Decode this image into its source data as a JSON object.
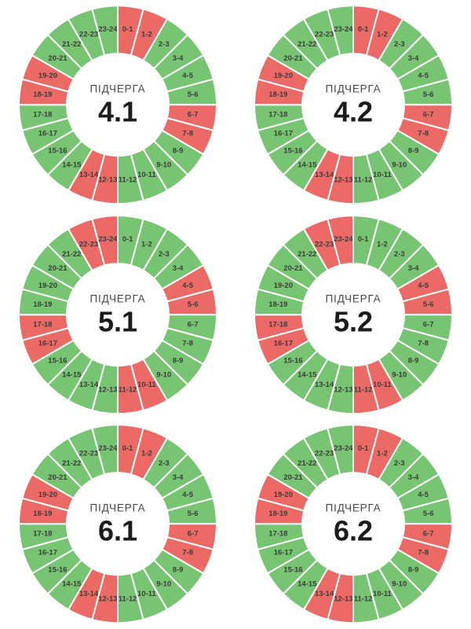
{
  "page": {
    "background": "#ffffff"
  },
  "palette": {
    "green": "#77c472",
    "red": "#ec6a66",
    "separator": "#ffffff",
    "hour_label_color": "#3c3c3c",
    "center_title_color": "#474747",
    "center_value_color": "#1c1c1c"
  },
  "chart_data": [
    {
      "type": "pie",
      "subtype": "donut",
      "title": "ПІДЧЕРГА",
      "center_value": "4.1",
      "slice_angle_deg": 15,
      "categories": [
        "0-1",
        "1-2",
        "2-3",
        "3-4",
        "4-5",
        "5-6",
        "6-7",
        "7-8",
        "8-9",
        "9-10",
        "10-11",
        "11-12",
        "12-13",
        "13-14",
        "14-15",
        "15-16",
        "16-17",
        "17-18",
        "18-19",
        "19-20",
        "20-21",
        "21-22",
        "22-23",
        "23-24"
      ],
      "slice_states": [
        "red",
        "red",
        "green",
        "green",
        "green",
        "green",
        "red",
        "red",
        "green",
        "green",
        "green",
        "green",
        "red",
        "red",
        "green",
        "green",
        "green",
        "green",
        "red",
        "red",
        "green",
        "green",
        "green",
        "green"
      ]
    },
    {
      "type": "pie",
      "subtype": "donut",
      "title": "ПІДЧЕРГА",
      "center_value": "4.2",
      "slice_angle_deg": 15,
      "categories": [
        "0-1",
        "1-2",
        "2-3",
        "3-4",
        "4-5",
        "5-6",
        "6-7",
        "7-8",
        "8-9",
        "9-10",
        "10-11",
        "11-12",
        "12-13",
        "13-14",
        "14-15",
        "15-16",
        "16-17",
        "17-18",
        "18-19",
        "19-20",
        "20-21",
        "21-22",
        "22-23",
        "23-24"
      ],
      "slice_states": [
        "red",
        "red",
        "green",
        "green",
        "green",
        "green",
        "red",
        "red",
        "green",
        "green",
        "green",
        "green",
        "red",
        "red",
        "green",
        "green",
        "green",
        "green",
        "red",
        "red",
        "green",
        "green",
        "green",
        "green"
      ]
    },
    {
      "type": "pie",
      "subtype": "donut",
      "title": "ПІДЧЕРГА",
      "center_value": "5.1",
      "slice_angle_deg": 15,
      "categories": [
        "0-1",
        "1-2",
        "2-3",
        "3-4",
        "4-5",
        "5-6",
        "6-7",
        "7-8",
        "8-9",
        "9-10",
        "10-11",
        "11-12",
        "12-13",
        "13-14",
        "14-15",
        "15-16",
        "16-17",
        "17-18",
        "18-19",
        "19-20",
        "20-21",
        "21-22",
        "22-23",
        "23-24"
      ],
      "slice_states": [
        "green",
        "green",
        "green",
        "green",
        "red",
        "red",
        "green",
        "green",
        "green",
        "green",
        "red",
        "red",
        "green",
        "green",
        "green",
        "green",
        "red",
        "red",
        "green",
        "green",
        "green",
        "green",
        "red",
        "red"
      ]
    },
    {
      "type": "pie",
      "subtype": "donut",
      "title": "ПІДЧЕРГА",
      "center_value": "5.2",
      "slice_angle_deg": 15,
      "categories": [
        "0-1",
        "1-2",
        "2-3",
        "3-4",
        "4-5",
        "5-6",
        "6-7",
        "7-8",
        "8-9",
        "9-10",
        "10-11",
        "11-12",
        "12-13",
        "13-14",
        "14-15",
        "15-16",
        "16-17",
        "17-18",
        "18-19",
        "19-20",
        "20-21",
        "21-22",
        "22-23",
        "23-24"
      ],
      "slice_states": [
        "green",
        "green",
        "green",
        "green",
        "red",
        "red",
        "green",
        "green",
        "green",
        "green",
        "red",
        "red",
        "green",
        "green",
        "green",
        "green",
        "red",
        "red",
        "green",
        "green",
        "green",
        "green",
        "red",
        "red"
      ]
    },
    {
      "type": "pie",
      "subtype": "donut",
      "title": "ПІДЧЕРГА",
      "center_value": "6.1",
      "slice_angle_deg": 15,
      "categories": [
        "0-1",
        "1-2",
        "2-3",
        "3-4",
        "4-5",
        "5-6",
        "6-7",
        "7-8",
        "8-9",
        "9-10",
        "10-11",
        "11-12",
        "12-13",
        "13-14",
        "14-15",
        "15-16",
        "16-17",
        "17-18",
        "18-19",
        "19-20",
        "20-21",
        "21-22",
        "22-23",
        "23-24"
      ],
      "slice_states": [
        "red",
        "red",
        "green",
        "green",
        "green",
        "green",
        "red",
        "red",
        "green",
        "green",
        "green",
        "green",
        "red",
        "red",
        "green",
        "green",
        "green",
        "green",
        "red",
        "red",
        "green",
        "green",
        "green",
        "green"
      ]
    },
    {
      "type": "pie",
      "subtype": "donut",
      "title": "ПІДЧЕРГА",
      "center_value": "6.2",
      "slice_angle_deg": 15,
      "categories": [
        "0-1",
        "1-2",
        "2-3",
        "3-4",
        "4-5",
        "5-6",
        "6-7",
        "7-8",
        "8-9",
        "9-10",
        "10-11",
        "11-12",
        "12-13",
        "13-14",
        "14-15",
        "15-16",
        "16-17",
        "17-18",
        "18-19",
        "19-20",
        "20-21",
        "21-22",
        "22-23",
        "23-24"
      ],
      "slice_states": [
        "red",
        "red",
        "green",
        "green",
        "green",
        "green",
        "red",
        "red",
        "green",
        "green",
        "green",
        "green",
        "red",
        "red",
        "green",
        "green",
        "green",
        "green",
        "red",
        "red",
        "green",
        "green",
        "green",
        "green"
      ]
    }
  ]
}
